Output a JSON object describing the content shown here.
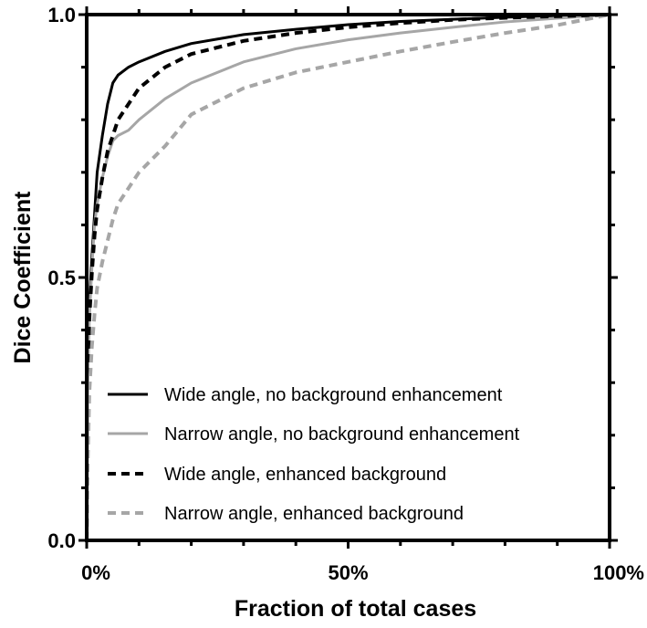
{
  "chart_data": {
    "type": "line",
    "title": "",
    "xlabel": "Fraction of total cases",
    "ylabel": "Dice Coefficient",
    "xlim": [
      0,
      100
    ],
    "ylim": [
      0,
      1
    ],
    "x_ticks": [
      "0%",
      "50%",
      "100%"
    ],
    "y_ticks": [
      "0.0",
      "0.5",
      "1.0"
    ],
    "grid": false,
    "legend_position": "bottom-left",
    "series": [
      {
        "name": "Wide angle, no background enhancement",
        "color": "#000000",
        "style": "solid",
        "x": [
          0,
          0.2,
          0.5,
          1,
          1.5,
          2,
          3,
          4,
          5,
          6,
          8,
          10,
          15,
          20,
          30,
          40,
          50,
          60,
          70,
          80,
          90,
          100
        ],
        "y": [
          0,
          0.32,
          0.45,
          0.54,
          0.62,
          0.7,
          0.77,
          0.83,
          0.87,
          0.885,
          0.9,
          0.91,
          0.93,
          0.945,
          0.962,
          0.972,
          0.981,
          0.987,
          0.991,
          0.995,
          0.998,
          1.0
        ]
      },
      {
        "name": "Narrow angle, no background enhancement",
        "color": "#a6a6a6",
        "style": "solid",
        "x": [
          0,
          0.2,
          0.5,
          1,
          1.5,
          2,
          3,
          4,
          5,
          6,
          8,
          10,
          15,
          20,
          30,
          40,
          50,
          60,
          70,
          80,
          90,
          100
        ],
        "y": [
          0,
          0.3,
          0.42,
          0.52,
          0.6,
          0.64,
          0.69,
          0.73,
          0.76,
          0.77,
          0.78,
          0.8,
          0.84,
          0.87,
          0.91,
          0.935,
          0.952,
          0.965,
          0.976,
          0.986,
          0.993,
          1.0
        ]
      },
      {
        "name": "Wide angle, enhanced background",
        "color": "#000000",
        "style": "dashed",
        "x": [
          0,
          0.2,
          0.5,
          1,
          1.5,
          2,
          3,
          4,
          5,
          6,
          8,
          10,
          15,
          20,
          30,
          40,
          50,
          60,
          70,
          80,
          90,
          100
        ],
        "y": [
          0,
          0.28,
          0.42,
          0.51,
          0.58,
          0.63,
          0.69,
          0.74,
          0.77,
          0.8,
          0.83,
          0.86,
          0.9,
          0.925,
          0.95,
          0.965,
          0.976,
          0.984,
          0.99,
          0.994,
          0.997,
          1.0
        ]
      },
      {
        "name": "Narrow angle, enhanced background",
        "color": "#a6a6a6",
        "style": "dashed",
        "x": [
          0,
          0.2,
          0.5,
          1,
          1.5,
          2,
          3,
          4,
          5,
          6,
          8,
          10,
          15,
          20,
          30,
          40,
          50,
          60,
          70,
          80,
          90,
          100
        ],
        "y": [
          0,
          0.15,
          0.28,
          0.37,
          0.43,
          0.48,
          0.53,
          0.57,
          0.61,
          0.64,
          0.67,
          0.7,
          0.75,
          0.81,
          0.86,
          0.89,
          0.91,
          0.93,
          0.948,
          0.965,
          0.98,
          1.0
        ]
      }
    ]
  }
}
